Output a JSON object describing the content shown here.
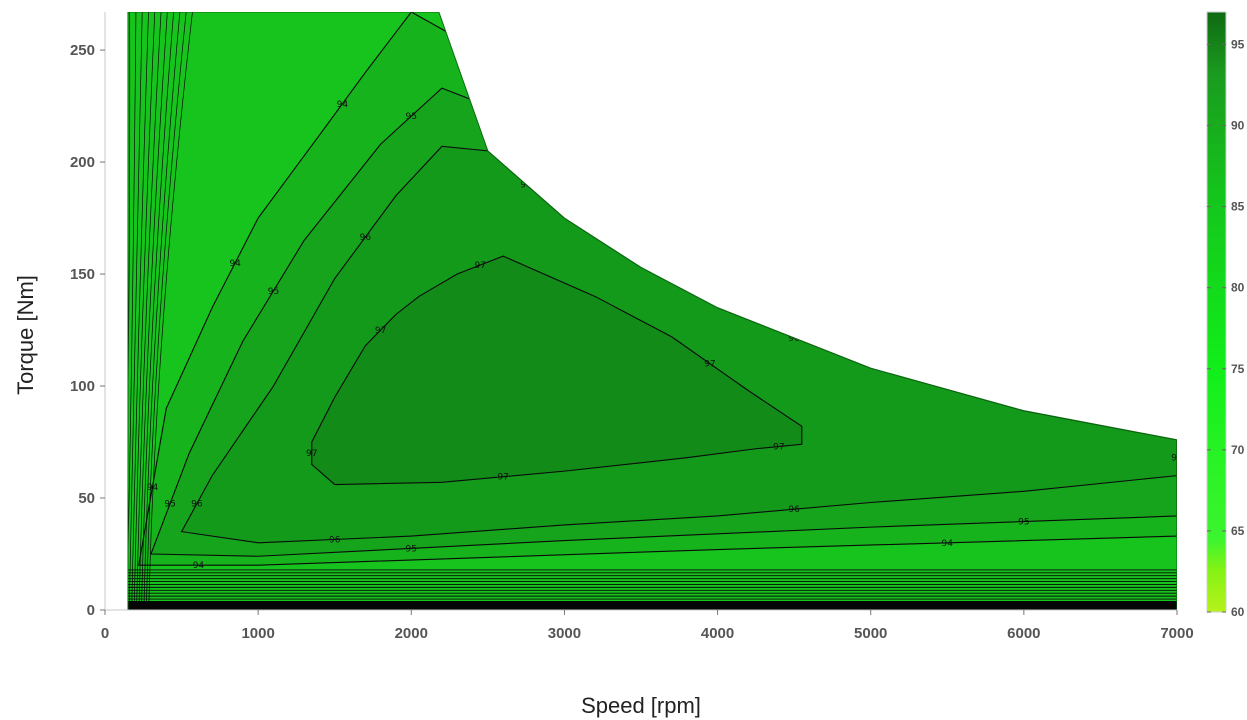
{
  "chart_data": {
    "type": "contour",
    "title": "",
    "xlabel": "Speed [rpm]",
    "ylabel": "Torque [Nm]",
    "xlim": [
      0,
      7000
    ],
    "ylim": [
      0,
      267
    ],
    "xticks": [
      "0",
      "1000",
      "2000",
      "3000",
      "4000",
      "5000",
      "6000",
      "7000"
    ],
    "yticks": [
      "0",
      "50",
      "100",
      "150",
      "200",
      "250"
    ],
    "colorbar": {
      "range": [
        60,
        97
      ],
      "ticks": [
        "60",
        "65",
        "70",
        "75",
        "80",
        "85",
        "90",
        "95"
      ]
    },
    "torque_envelope": {
      "speed": [
        150,
        2180,
        2500,
        3000,
        3500,
        4000,
        5000,
        6000,
        7000
      ],
      "torque": [
        267,
        267,
        205,
        175,
        153,
        135,
        108,
        89,
        76
      ]
    },
    "contour_levels": [
      {
        "level": "97",
        "speed": [
          1350,
          1350,
          1500,
          1700,
          1900,
          2050,
          2300,
          2600,
          3200,
          3700,
          4200,
          4550,
          4550,
          4250,
          3800,
          3000,
          2200,
          1500,
          1350
        ],
        "torque": [
          65,
          75,
          95,
          118,
          132,
          140,
          150,
          158,
          140,
          122,
          98,
          82,
          74,
          72,
          68,
          62,
          57,
          56,
          65
        ]
      },
      {
        "level": "96",
        "speed": [
          500,
          700,
          1100,
          1500,
          1900,
          2200,
          2500,
          3000,
          3500,
          4000,
          5000,
          6000,
          7000,
          7000,
          6000,
          5000,
          4000,
          3000,
          2000,
          1000,
          500
        ],
        "torque": [
          35,
          60,
          100,
          148,
          185,
          207,
          205,
          175,
          153,
          135,
          108,
          89,
          76,
          60,
          53,
          48,
          42,
          38,
          33,
          30,
          35
        ]
      },
      {
        "level": "95",
        "speed": [
          300,
          550,
          900,
          1300,
          1800,
          2200,
          2500,
          7000,
          7000,
          5000,
          3000,
          1000,
          300
        ],
        "torque": [
          25,
          70,
          120,
          165,
          208,
          233,
          225,
          76,
          42,
          37,
          31,
          24,
          25
        ]
      },
      {
        "level": "94",
        "speed": [
          220,
          400,
          700,
          1000,
          1400,
          1700,
          2000,
          7000,
          7000,
          4000,
          1000,
          220
        ],
        "torque": [
          20,
          90,
          135,
          175,
          212,
          240,
          267,
          76,
          33,
          27,
          20,
          20
        ]
      }
    ]
  }
}
